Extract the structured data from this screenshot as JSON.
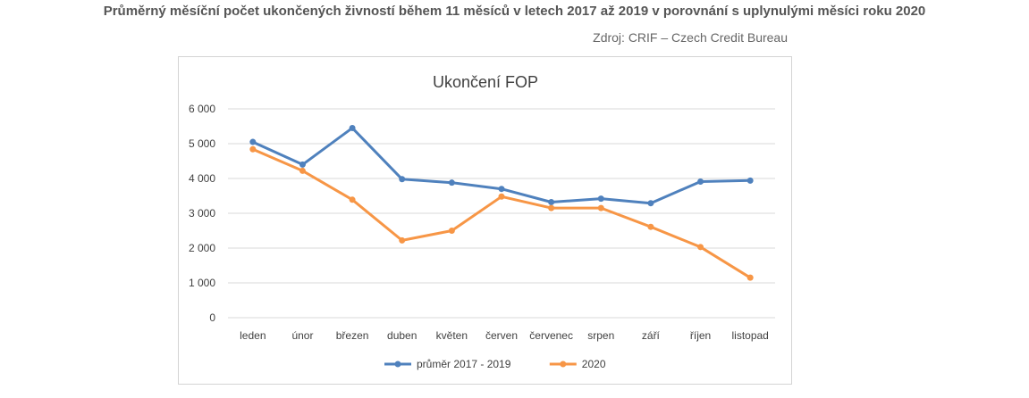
{
  "page": {
    "title": "Průměrný měsíční počet ukončených živností během 11 měsíců v letech 2017 až 2019 v porovnání s uplynulými měsíci roku 2020",
    "source": "Zdroj: CRIF – Czech Credit Bureau"
  },
  "colors": {
    "series1": "#4f81bd",
    "series2": "#f79646",
    "grid": "#d9d9d9"
  },
  "chart_data": {
    "type": "line",
    "title": "Ukončení FOP",
    "categories": [
      "leden",
      "únor",
      "březen",
      "duben",
      "květen",
      "červen",
      "červenec",
      "srpen",
      "září",
      "říjen",
      "listopad"
    ],
    "series": [
      {
        "name": "průměr 2017 - 2019",
        "values": [
          5050,
          4400,
          5450,
          3980,
          3880,
          3700,
          3320,
          3420,
          3290,
          3910,
          3940
        ]
      },
      {
        "name": "2020",
        "values": [
          4840,
          4220,
          3390,
          2220,
          2500,
          3480,
          3150,
          3150,
          2610,
          2030,
          1150
        ]
      }
    ],
    "ylim": [
      0,
      6000
    ],
    "yticks": [
      "0",
      "1 000",
      "2 000",
      "3 000",
      "4 000",
      "5 000",
      "6 000"
    ],
    "grid": true,
    "legend": "bottom"
  }
}
